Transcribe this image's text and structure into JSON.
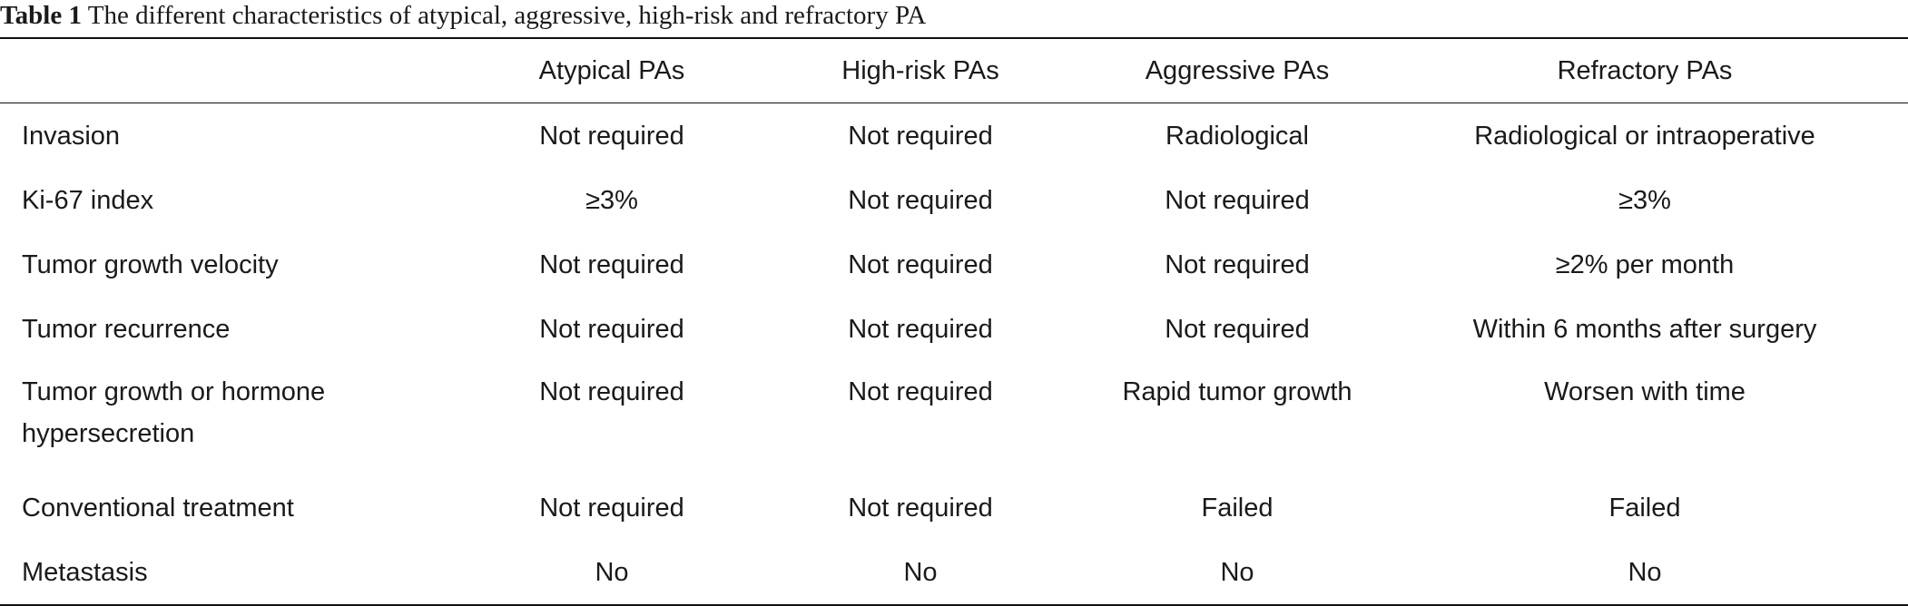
{
  "caption": {
    "label": "Table 1",
    "text": "The different characteristics of atypical, aggressive, high-risk and refractory PA"
  },
  "table": {
    "stub_header": "",
    "columns": [
      "Atypical PAs",
      "High-risk PAs",
      "Aggressive PAs",
      "Refractory PAs"
    ],
    "rows": [
      {
        "label": "Invasion",
        "cells": [
          "Not required",
          "Not required",
          "Radiological",
          "Radiological or intraoperative"
        ]
      },
      {
        "label": "Ki-67 index",
        "cells": [
          "≥3%",
          "Not required",
          "Not required",
          "≥3%"
        ]
      },
      {
        "label": "Tumor growth velocity",
        "cells": [
          "Not required",
          "Not required",
          "Not required",
          "≥2% per month"
        ]
      },
      {
        "label": "Tumor recurrence",
        "cells": [
          "Not required",
          "Not required",
          "Not required",
          "Within 6 months after surgery"
        ]
      },
      {
        "label": "Tumor growth or hormone hypersecretion",
        "cells": [
          "Not required",
          "Not required",
          "Rapid tumor growth",
          "Worsen with time"
        ]
      },
      {
        "label": "Conventional treatment",
        "cells": [
          "Not required",
          "Not required",
          "Failed",
          "Failed"
        ]
      },
      {
        "label": "Metastasis",
        "cells": [
          "No",
          "No",
          "No",
          "No"
        ]
      }
    ]
  }
}
